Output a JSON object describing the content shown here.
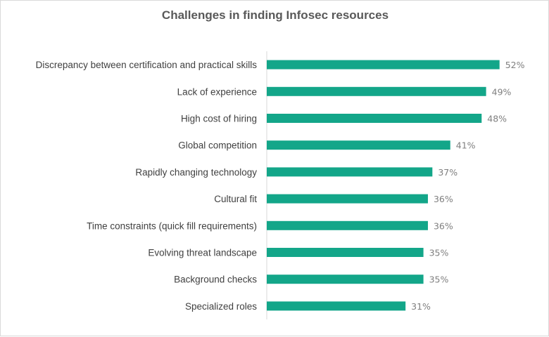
{
  "chart_data": {
    "type": "bar",
    "orientation": "horizontal",
    "title": "Challenges in finding Infosec resources",
    "categories": [
      "Discrepancy between certification and practical skills",
      "Lack of experience",
      "High cost of hiring",
      "Global competition",
      "Rapidly changing technology",
      "Cultural fit",
      "Time constraints (quick fill requirements)",
      "Evolving threat landscape",
      "Background checks",
      "Specialized roles"
    ],
    "values": [
      52,
      49,
      48,
      41,
      37,
      36,
      36,
      35,
      35,
      31
    ],
    "value_labels": [
      "52%",
      "49%",
      "48%",
      "41%",
      "37%",
      "36%",
      "36%",
      "35%",
      "35%",
      "31%"
    ],
    "xlim": [
      0,
      60
    ],
    "grid": false,
    "legend": "none",
    "bar_color": "#13a689"
  }
}
